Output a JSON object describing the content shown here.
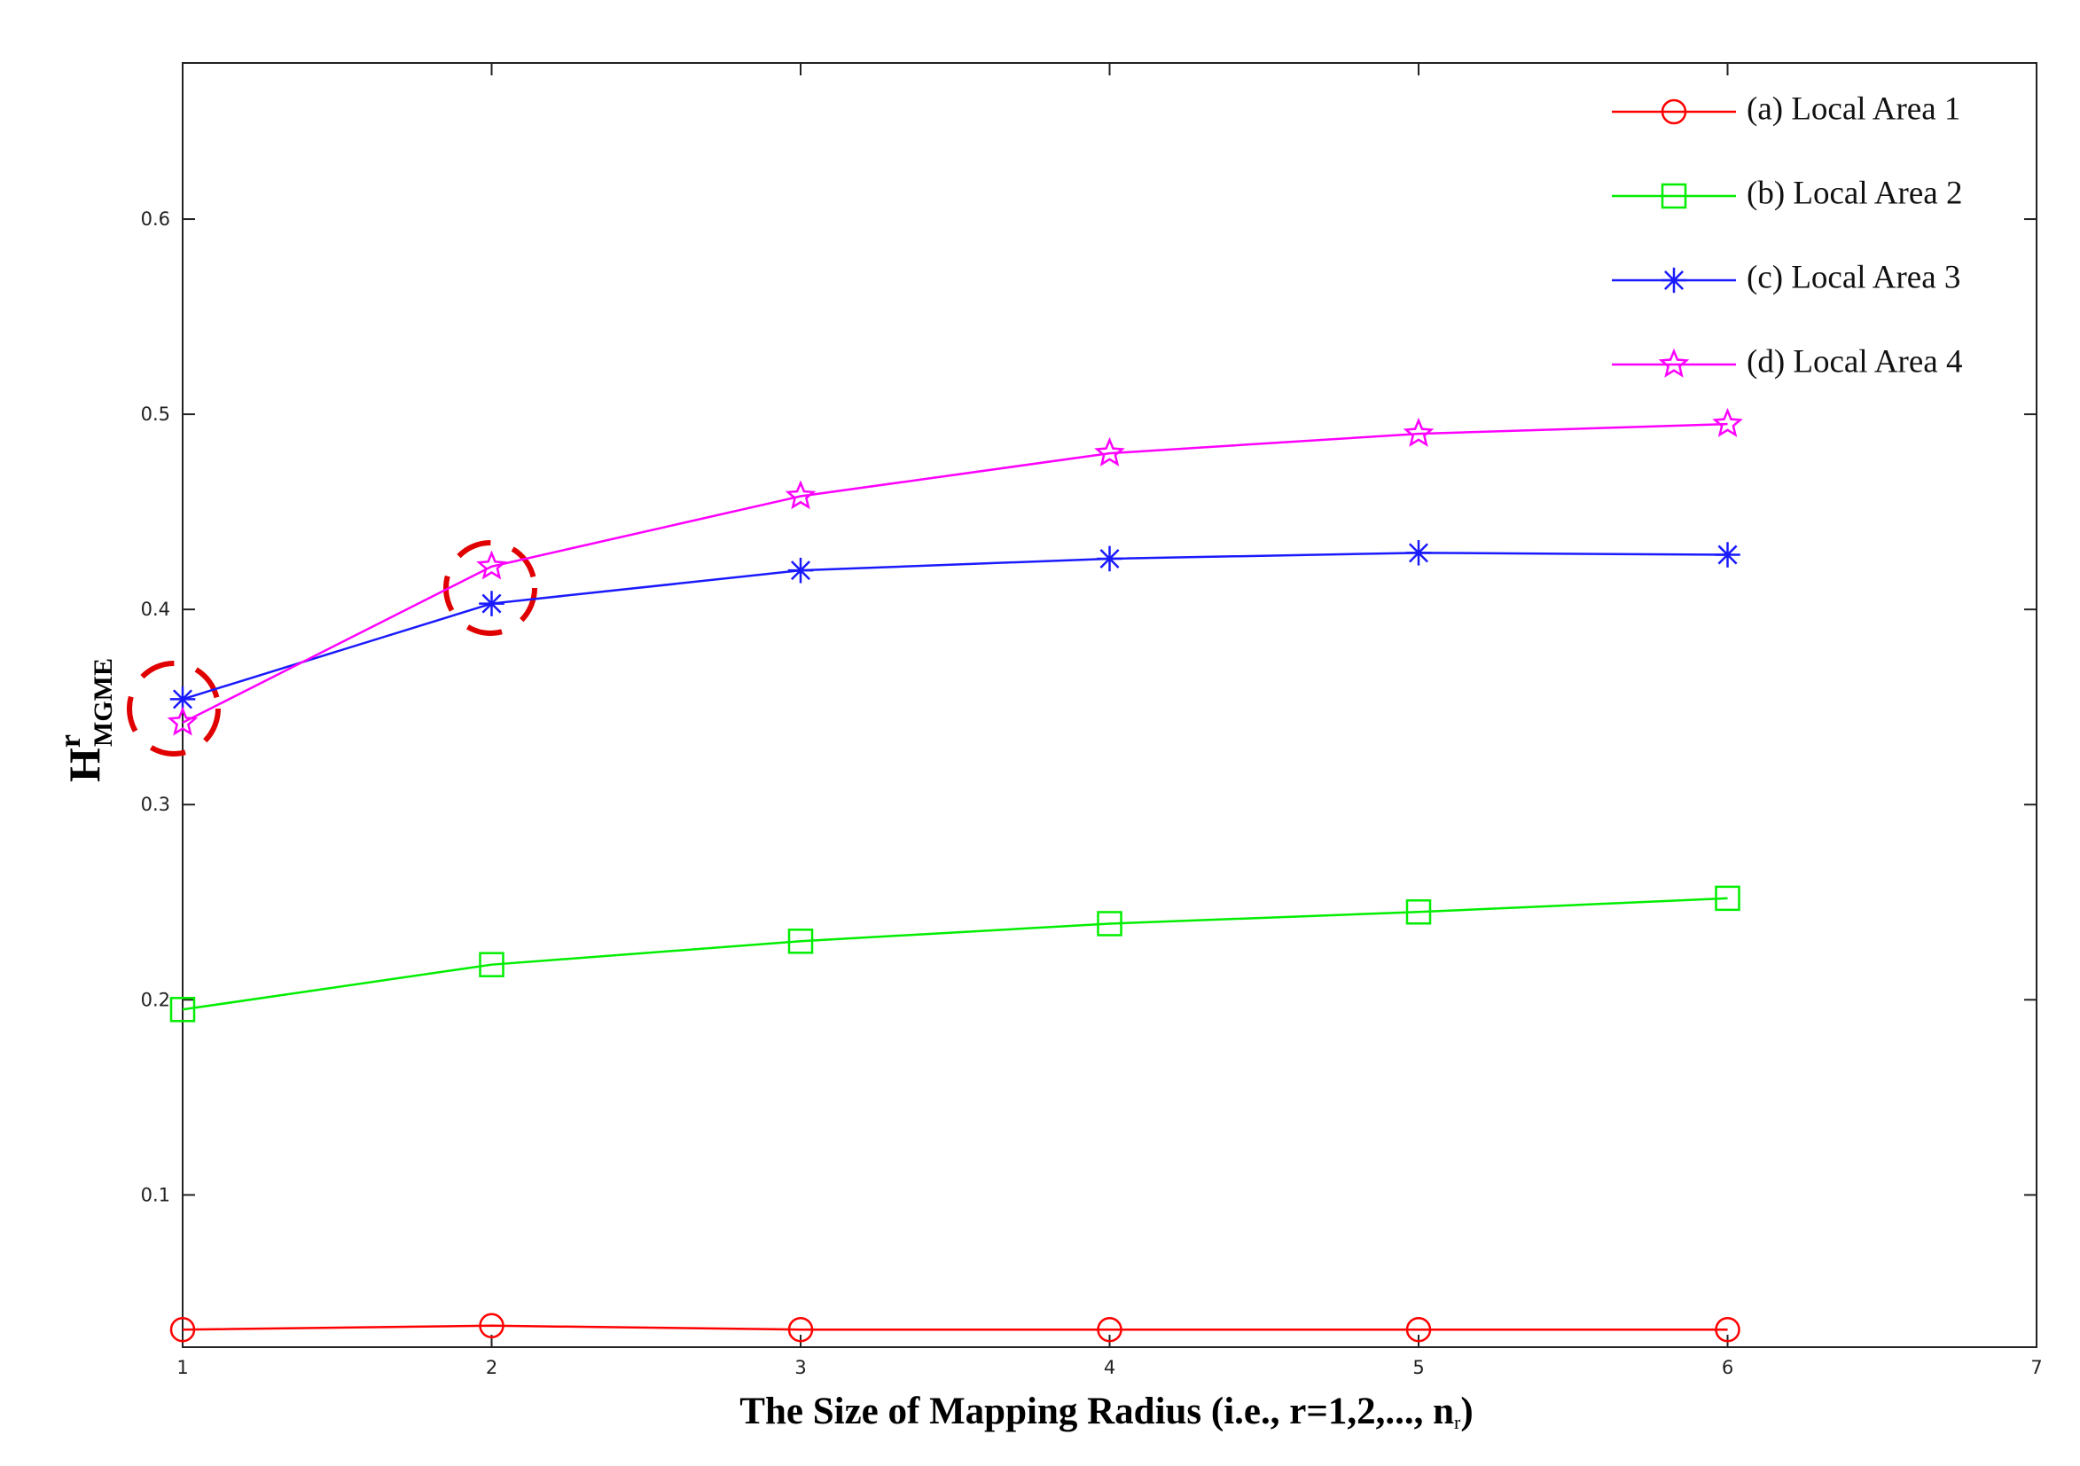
{
  "chart_data": {
    "type": "line",
    "x_label": [
      "The Size of Mapping Radius (i.e., r=1,2,..., n",
      "r",
      ")"
    ],
    "y_label": [
      "H",
      "r",
      "MGME"
    ],
    "x": [
      1,
      2,
      3,
      4,
      5,
      6
    ],
    "series": [
      {
        "name": "(a) Local Area 1",
        "color": "#ff0000",
        "marker": "circle",
        "values": [
          0.031,
          0.033,
          0.031,
          0.031,
          0.031,
          0.031
        ]
      },
      {
        "name": "(b) Local Area 2",
        "color": "#00ee00",
        "marker": "square",
        "values": [
          0.195,
          0.218,
          0.23,
          0.239,
          0.245,
          0.252
        ]
      },
      {
        "name": "(c) Local Area 3",
        "color": "#1a1aff",
        "marker": "asterisk",
        "values": [
          0.354,
          0.403,
          0.42,
          0.426,
          0.429,
          0.428
        ]
      },
      {
        "name": "(d) Local Area 4",
        "color": "#ff00ff",
        "marker": "pentagram",
        "values": [
          0.342,
          0.422,
          0.458,
          0.48,
          0.49,
          0.495
        ]
      }
    ],
    "xlim": [
      1,
      7
    ],
    "xticks": [
      1,
      2,
      3,
      4,
      5,
      6,
      7
    ],
    "ylim": [
      0.022,
      0.68
    ],
    "yticks": [
      0.1,
      0.2,
      0.3,
      0.4,
      0.5,
      0.6
    ],
    "legend": "upper right",
    "grid": false
  }
}
